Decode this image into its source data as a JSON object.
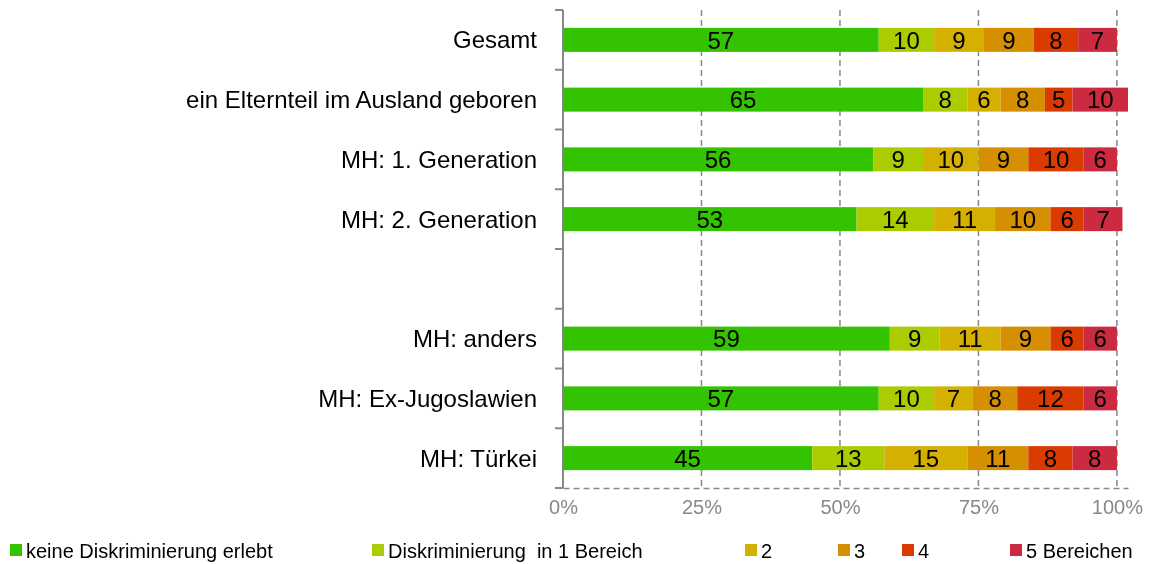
{
  "chart_data": {
    "type": "bar",
    "orientation": "horizontal",
    "stacked": true,
    "data_labels": true,
    "categories": [
      "Gesamt",
      "ein Elternteil im Ausland geboren",
      "MH: 1. Generation",
      "MH: 2. Generation",
      null,
      "MH: anders",
      "MH: Ex-Jugoslawien",
      "MH: Türkei"
    ],
    "series": [
      {
        "name": "keine Diskriminierung erlebt",
        "color": "#33c300",
        "values": [
          57,
          65,
          56,
          53,
          null,
          59,
          57,
          45
        ]
      },
      {
        "name": "Diskriminierung  in 1 Bereich",
        "color": "#aacc00",
        "values": [
          10,
          8,
          9,
          14,
          null,
          9,
          10,
          13
        ]
      },
      {
        "name": "2",
        "color": "#d4b000",
        "values": [
          9,
          6,
          10,
          11,
          null,
          11,
          7,
          15
        ]
      },
      {
        "name": "3",
        "color": "#d68f00",
        "values": [
          9,
          8,
          9,
          10,
          null,
          9,
          8,
          11
        ]
      },
      {
        "name": "4",
        "color": "#d93b00",
        "values": [
          8,
          5,
          10,
          6,
          null,
          6,
          12,
          8
        ]
      },
      {
        "name": "5 Bereichen",
        "color": "#cc2a40",
        "values": [
          7,
          10,
          6,
          7,
          null,
          6,
          6,
          8
        ]
      }
    ],
    "xlim": [
      0,
      102
    ],
    "xticks": [
      {
        "value": 0,
        "label": "0%"
      },
      {
        "value": 25,
        "label": "25%"
      },
      {
        "value": 50,
        "label": "50%"
      },
      {
        "value": 75,
        "label": "75%"
      },
      {
        "value": 100,
        "label": "100%"
      }
    ],
    "grid": "x",
    "legend": "bottom"
  }
}
